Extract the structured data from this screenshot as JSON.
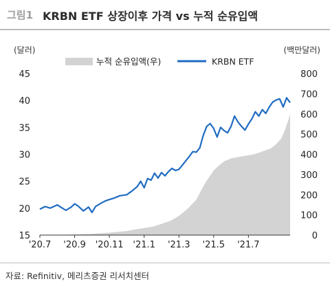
{
  "figure": {
    "number": "그림1",
    "title": "KRBN ETF 상장이후 가격 vs 누적 순유입액",
    "source": "자료: Refinitiv, 메리츠증권 리서치센터"
  },
  "colors": {
    "line": "#1f6bc2",
    "area": "#d3d3d3",
    "axis": "#333333"
  },
  "chart_data": {
    "type": "line",
    "title": "KRBN ETF 상장이후 가격 vs 누적 순유입액",
    "left_unit": "(달러)",
    "right_unit": "(백만달러)",
    "ylim": [
      15,
      45
    ],
    "y2lim": [
      0,
      800
    ],
    "y_ticks": [
      15,
      20,
      25,
      30,
      35,
      40,
      45
    ],
    "y2_ticks": [
      0,
      100,
      200,
      300,
      400,
      500,
      600,
      700,
      800
    ],
    "x_tick_labels": [
      "'20.7",
      "'20.9",
      "'20.11",
      "'21.1",
      "'21.3",
      "'21.5",
      "'21.7"
    ],
    "x_tick_positions": [
      0,
      2,
      4,
      6,
      8,
      10,
      12
    ],
    "xlim": [
      0,
      14.4
    ],
    "legend_position": "top",
    "series": [
      {
        "name": "누적 순유입액(우)",
        "kind": "area",
        "axis": "right",
        "points": [
          [
            0,
            0
          ],
          [
            1.0,
            1
          ],
          [
            2.0,
            3
          ],
          [
            3.0,
            6
          ],
          [
            4.0,
            12
          ],
          [
            5.0,
            20
          ],
          [
            5.5,
            28
          ],
          [
            6.0,
            35
          ],
          [
            6.5,
            42
          ],
          [
            7.0,
            55
          ],
          [
            7.5,
            70
          ],
          [
            8.0,
            95
          ],
          [
            8.5,
            130
          ],
          [
            9.0,
            175
          ],
          [
            9.3,
            225
          ],
          [
            9.6,
            270
          ],
          [
            10.0,
            320
          ],
          [
            10.3,
            345
          ],
          [
            10.6,
            365
          ],
          [
            11.0,
            380
          ],
          [
            11.5,
            388
          ],
          [
            12.0,
            395
          ],
          [
            12.3,
            400
          ],
          [
            12.6,
            408
          ],
          [
            13.0,
            420
          ],
          [
            13.3,
            430
          ],
          [
            13.6,
            450
          ],
          [
            13.9,
            480
          ],
          [
            14.1,
            520
          ],
          [
            14.3,
            570
          ],
          [
            14.4,
            600
          ]
        ]
      },
      {
        "name": "KRBN ETF",
        "kind": "line",
        "axis": "left",
        "points": [
          [
            0,
            19.8
          ],
          [
            0.3,
            20.3
          ],
          [
            0.6,
            20.0
          ],
          [
            1.0,
            20.6
          ],
          [
            1.2,
            20.2
          ],
          [
            1.5,
            19.6
          ],
          [
            1.8,
            20.2
          ],
          [
            2.0,
            20.8
          ],
          [
            2.2,
            20.4
          ],
          [
            2.5,
            19.5
          ],
          [
            2.8,
            20.2
          ],
          [
            3.0,
            19.2
          ],
          [
            3.2,
            20.3
          ],
          [
            3.5,
            20.9
          ],
          [
            3.8,
            21.4
          ],
          [
            4.0,
            21.6
          ],
          [
            4.3,
            21.9
          ],
          [
            4.6,
            22.3
          ],
          [
            5.0,
            22.5
          ],
          [
            5.3,
            23.2
          ],
          [
            5.6,
            24.0
          ],
          [
            5.8,
            25.0
          ],
          [
            6.0,
            23.8
          ],
          [
            6.2,
            25.5
          ],
          [
            6.4,
            25.2
          ],
          [
            6.6,
            26.5
          ],
          [
            6.8,
            25.6
          ],
          [
            7.0,
            26.6
          ],
          [
            7.2,
            26.0
          ],
          [
            7.4,
            26.8
          ],
          [
            7.6,
            27.4
          ],
          [
            7.8,
            27.0
          ],
          [
            8.0,
            27.2
          ],
          [
            8.2,
            28.0
          ],
          [
            8.4,
            28.8
          ],
          [
            8.6,
            29.6
          ],
          [
            8.8,
            30.5
          ],
          [
            9.0,
            30.4
          ],
          [
            9.2,
            31.2
          ],
          [
            9.4,
            33.5
          ],
          [
            9.6,
            35.2
          ],
          [
            9.8,
            35.7
          ],
          [
            10.0,
            34.8
          ],
          [
            10.2,
            33.2
          ],
          [
            10.4,
            35.0
          ],
          [
            10.6,
            34.4
          ],
          [
            10.8,
            34.0
          ],
          [
            11.0,
            35.2
          ],
          [
            11.2,
            37.1
          ],
          [
            11.4,
            36.0
          ],
          [
            11.6,
            35.2
          ],
          [
            11.8,
            34.5
          ],
          [
            12.0,
            35.6
          ],
          [
            12.2,
            36.6
          ],
          [
            12.4,
            37.9
          ],
          [
            12.6,
            37.1
          ],
          [
            12.8,
            38.3
          ],
          [
            13.0,
            37.6
          ],
          [
            13.2,
            38.8
          ],
          [
            13.4,
            39.7
          ],
          [
            13.6,
            40.1
          ],
          [
            13.8,
            40.3
          ],
          [
            14.0,
            38.8
          ],
          [
            14.2,
            40.5
          ],
          [
            14.4,
            39.6
          ]
        ]
      }
    ]
  }
}
